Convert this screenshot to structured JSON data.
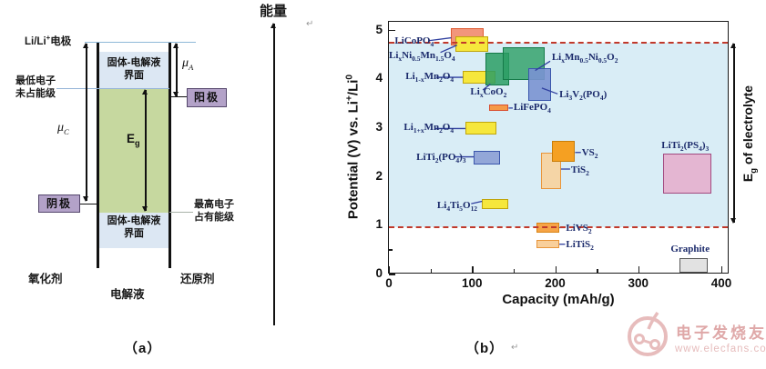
{
  "diagram_a": {
    "energy_axis_label": "能量",
    "electrode_label": "Li/Li^{+}电极",
    "interface_line1": "固体-电解液",
    "interface_line2": "界面",
    "lumo_line1": "最低电子",
    "lumo_line2": "未占能级",
    "homo_line1": "最高电子",
    "homo_line2": "占有能级",
    "mu_a": "μ_{A}",
    "mu_c": "μ_{C}",
    "eg": "E_{g}",
    "anode": "阳极",
    "cathode": "阴极",
    "oxidant": "氧化剂",
    "electrolyte": "电解液",
    "reductant": "还原剂",
    "colors": {
      "interface_band": "#dce7f3",
      "bandgap_region": "#c6d89f",
      "electrode_box_fill": "#b3a2c8",
      "electrode_box_border": "#54466b",
      "level_line_blue": "#8fb8d8",
      "level_line_gray": "#a9b2a9"
    }
  },
  "captions": {
    "a": "（a）",
    "b": "（b）",
    "return_mark": "↵"
  },
  "chart_data": {
    "type": "scatter",
    "representation": "range-boxes (capacity window × potential window per material)",
    "title": "",
    "xlabel": "Capacity (mAh/g)",
    "ylabel": "Potential (V) vs. Li^{+}/Li^{0}",
    "xlim": [
      0,
      400
    ],
    "ylim": [
      0,
      5
    ],
    "x_major_ticks": [
      0,
      100,
      200,
      300,
      400
    ],
    "x_minor_ticks": [
      50,
      150,
      250,
      350
    ],
    "y_major_ticks": [
      0,
      1,
      2,
      3,
      4,
      5
    ],
    "y_minor_ticks": [
      0.5,
      1.5,
      2.5,
      3.5,
      4.5
    ],
    "grid": false,
    "electrolyte_window": {
      "min_v": 0.97,
      "max_v": 4.75,
      "label": "E_{g} of electrolyte",
      "line_color": "#c0392b",
      "fill_color": "#d9edf6"
    },
    "materials": [
      {
        "id": "licopo4",
        "name": "LiCoPO_{4}",
        "capacity": [
          75,
          114
        ],
        "potential": [
          4.7,
          5.05
        ],
        "fill": "#f2967c",
        "border": "#e05c33",
        "pattern": "none",
        "z": 3,
        "label": {
          "x": 7,
          "v": 4.76,
          "anchor": "left"
        },
        "leader": [
          [
            48,
            4.79
          ],
          [
            75,
            4.85
          ]
        ]
      },
      {
        "id": "lixni05mn15o4",
        "name": "Li_{x}Ni_{0.5}Mn_{1.5}O_{4}",
        "capacity": [
          80,
          119
        ],
        "potential": [
          4.56,
          4.88
        ],
        "fill": "#f6e73c",
        "border": "#c0a50c",
        "pattern": "none",
        "z": 4,
        "label": {
          "x": 0,
          "v": 4.47,
          "anchor": "left"
        },
        "leader": [
          [
            62,
            4.55
          ],
          [
            82,
            4.7
          ]
        ]
      },
      {
        "id": "li1-xmn2o4",
        "name": "Li_{1-x}Mn_{2}O_{4}",
        "capacity": [
          89,
          128
        ],
        "potential": [
          3.91,
          4.17
        ],
        "fill": "#f6e73c",
        "border": "#c0a50c",
        "pattern": "none",
        "z": 4,
        "label": {
          "x": 20,
          "v": 4.04,
          "anchor": "left"
        },
        "leader": [
          [
            57,
            4.04
          ],
          [
            89,
            4.04
          ]
        ]
      },
      {
        "id": "lixcoo2",
        "name": "Li_{x}CoO_{2}",
        "capacity": [
          116,
          145
        ],
        "potential": [
          3.88,
          4.55
        ],
        "fill": "rgba(42,158,100,0.85)",
        "border": "#157a48",
        "pattern": "hatch",
        "z": 5,
        "label": {
          "x": 98,
          "v": 3.72,
          "anchor": "left"
        },
        "leader": [
          [
            113,
            3.78
          ],
          [
            122,
            3.9
          ]
        ]
      },
      {
        "id": "lixmn05ni05o2",
        "name": "Li_{x}Mn_{0.5}Ni_{0.5}O_{2}",
        "capacity": [
          137,
          187
        ],
        "potential": [
          3.98,
          4.66
        ],
        "fill": "rgba(42,158,100,0.80)",
        "border": "#157a48",
        "pattern": "hatch",
        "z": 5,
        "label": {
          "x": 196,
          "v": 4.43,
          "anchor": "left"
        },
        "leader": [
          [
            194,
            4.37
          ],
          [
            176,
            4.18
          ]
        ]
      },
      {
        "id": "li3v2po4",
        "name": "Li_{3}V_{2}(PO_{4})",
        "capacity": [
          168,
          195
        ],
        "potential": [
          3.55,
          4.22
        ],
        "fill": "rgba(122,146,210,0.90)",
        "border": "#3a56ac",
        "pattern": "none",
        "z": 6,
        "label": {
          "x": 205,
          "v": 3.66,
          "anchor": "left"
        },
        "leader": [
          [
            203,
            3.7
          ],
          [
            184,
            3.82
          ]
        ]
      },
      {
        "id": "lifepo4",
        "name": "LiFePO_{4}",
        "capacity": [
          121,
          144
        ],
        "potential": [
          3.35,
          3.48
        ],
        "fill": "#f59a48",
        "border": "#d94f30",
        "pattern": "none",
        "z": 4,
        "label": {
          "x": 150,
          "v": 3.41,
          "anchor": "left"
        },
        "leader": [
          [
            149,
            3.41
          ],
          [
            144,
            3.41
          ]
        ]
      },
      {
        "id": "li1+xmn2o4",
        "name": "Li_{1+x}Mn_{2}O_{4}",
        "capacity": [
          92,
          129
        ],
        "potential": [
          2.87,
          3.12
        ],
        "fill": "#f6e73c",
        "border": "#c0a50c",
        "pattern": "none",
        "z": 4,
        "label": {
          "x": 18,
          "v": 2.99,
          "anchor": "left"
        },
        "leader": [
          [
            56,
            2.99
          ],
          [
            92,
            2.99
          ]
        ]
      },
      {
        "id": "liti2po43",
        "name": "LiTi_{2}(PO_{4})_{3}",
        "capacity": [
          102,
          134
        ],
        "potential": [
          2.25,
          2.54
        ],
        "fill": "#93a7d8",
        "border": "#3a56ac",
        "pattern": "none",
        "z": 4,
        "label": {
          "x": 33,
          "v": 2.38,
          "anchor": "left"
        },
        "leader": [
          [
            79,
            2.41
          ],
          [
            102,
            2.41
          ]
        ]
      },
      {
        "id": "vs2",
        "name": "VS_{2}",
        "capacity": [
          196,
          224
        ],
        "potential": [
          2.3,
          2.73
        ],
        "fill": "#f5a022",
        "border": "#c87d08",
        "pattern": "none",
        "z": 5,
        "label": {
          "x": 232,
          "v": 2.47,
          "anchor": "left"
        },
        "leader": [
          [
            231,
            2.5
          ],
          [
            224,
            2.5
          ]
        ]
      },
      {
        "id": "tis2",
        "name": "TiS_{2}",
        "capacity": [
          183,
          207
        ],
        "potential": [
          1.75,
          2.5
        ],
        "fill": "rgba(249,208,152,0.85)",
        "border": "#e8953a",
        "pattern": "none",
        "z": 4,
        "label": {
          "x": 219,
          "v": 2.13,
          "anchor": "left"
        },
        "leader": [
          [
            218,
            2.16
          ],
          [
            207,
            2.16
          ]
        ]
      },
      {
        "id": "li4ti5o12",
        "name": "Li_{4}Ti_{5}O_{12}",
        "capacity": [
          112,
          144
        ],
        "potential": [
          1.34,
          1.54
        ],
        "fill": "#f6e73c",
        "border": "#c0a50c",
        "pattern": "none",
        "z": 4,
        "label": {
          "x": 58,
          "v": 1.39,
          "anchor": "left"
        },
        "leader": [
          [
            99,
            1.45
          ],
          [
            112,
            1.5
          ]
        ]
      },
      {
        "id": "livs2",
        "name": "LiVS_{2}",
        "capacity": [
          178,
          205
        ],
        "potential": [
          0.85,
          1.06
        ],
        "fill": "#f6a446",
        "border": "#d98416",
        "pattern": "none",
        "z": 4,
        "label": {
          "x": 213,
          "v": 0.94,
          "anchor": "left"
        },
        "leader": [
          [
            212,
            0.96
          ],
          [
            205,
            0.96
          ]
        ]
      },
      {
        "id": "litis2",
        "name": "LiTiS_{2}",
        "capacity": [
          178,
          205
        ],
        "potential": [
          0.54,
          0.71
        ],
        "fill": "#f8cf9b",
        "border": "#e8953a",
        "pattern": "none",
        "z": 4,
        "label": {
          "x": 213,
          "v": 0.6,
          "anchor": "left"
        },
        "leader": [
          [
            212,
            0.62
          ],
          [
            205,
            0.62
          ]
        ]
      },
      {
        "id": "liti2ps43",
        "name": "LiTi_{2}(PS_{4})_{3}",
        "capacity": [
          330,
          388
        ],
        "potential": [
          1.65,
          2.47
        ],
        "fill": "#e4b6d2",
        "border": "#a24a80",
        "pattern": "grid",
        "z": 4,
        "label": {
          "x": 328,
          "v": 2.63,
          "anchor": "left"
        },
        "leader": null
      },
      {
        "id": "graphite",
        "name": "Graphite",
        "capacity": [
          350,
          384
        ],
        "potential": [
          0.04,
          0.33
        ],
        "fill": "#e2e2e2",
        "border": "#5a5a5a",
        "pattern": "none",
        "z": 4,
        "label": {
          "x": 339,
          "v": 0.5,
          "anchor": "left"
        },
        "leader": null
      }
    ],
    "leader_color": "#2f3f9f"
  },
  "watermark": {
    "line1": "电子发烧友",
    "line2": "www.elecfans.com",
    "color1": "#dfa8a8",
    "color2": "#e6bcbc"
  }
}
